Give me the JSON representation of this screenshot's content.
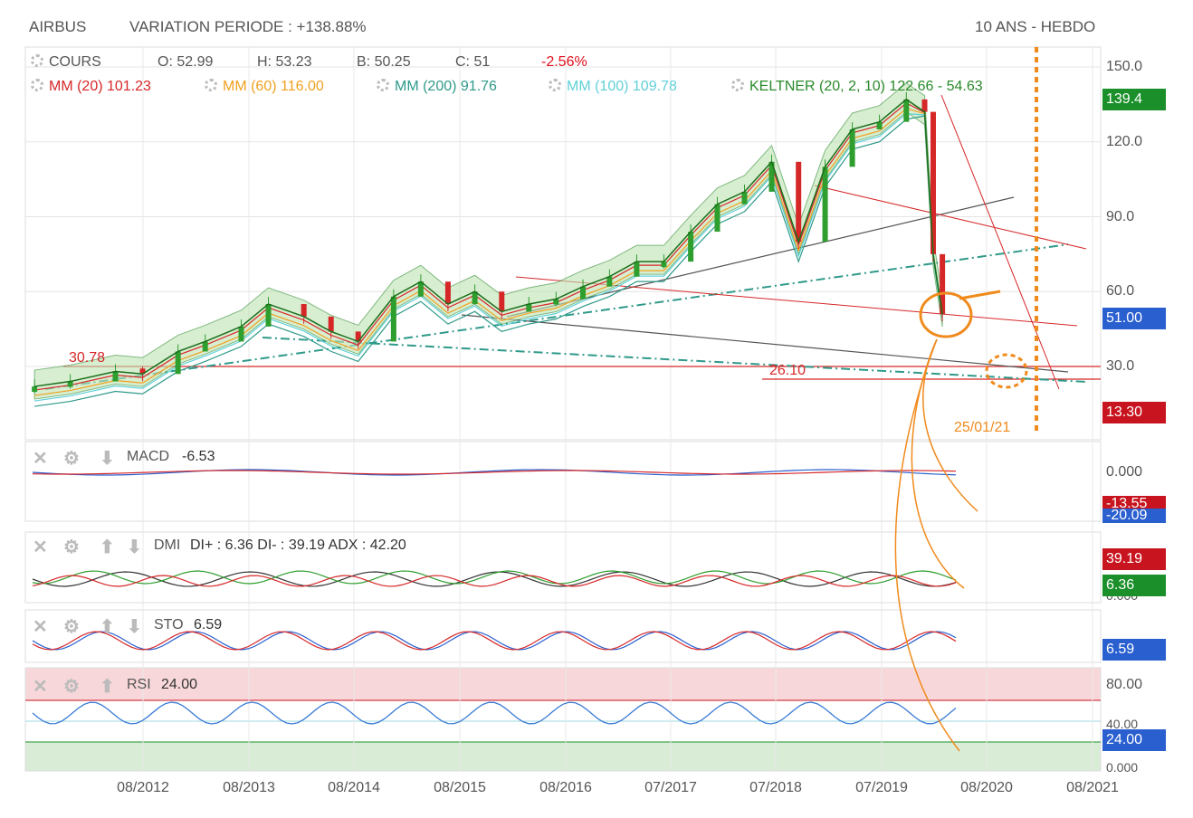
{
  "header": {
    "title": "AIRBUS",
    "variation": "VARIATION PERIODE : +138.88%",
    "period": "10 ANS - HEBDO"
  },
  "legend": {
    "cours": "COURS",
    "open": "O: 52.99",
    "high": "H: 53.23",
    "low": "B: 50.25",
    "close": "C: 51",
    "change": "-2.56%",
    "mm20": "MM (20) 101.23",
    "mm60": "MM (60) 116.00",
    "mm200": "MM (200) 91.76",
    "mm100": "MM (100) 109.78",
    "keltner": "KELTNER (20, 2, 10) 122.66 - 54.63"
  },
  "annotations": {
    "level_high": "30.78",
    "level_low": "26.10",
    "date_marker": "25/01/21"
  },
  "badges": {
    "price_top": "139.4",
    "price_last": "51.00",
    "price_target": "13.30",
    "macd_a": "-13.55",
    "macd_b": "-20.09",
    "dmi_minus": "39.19",
    "dmi_plus": "6.36",
    "sto": "6.59",
    "rsi": "24.00"
  },
  "panels": {
    "macd": {
      "name": "MACD",
      "value": "-6.53",
      "axis": [
        "0.000"
      ]
    },
    "dmi": {
      "name": "DMI",
      "value": "DI+ : 6.36 DI- : 39.19 ADX : 42.20",
      "axis": [
        "0.000"
      ]
    },
    "sto": {
      "name": "STO",
      "value": "6.59"
    },
    "rsi": {
      "name": "RSI",
      "value": "24.00",
      "axis": [
        "80.00",
        "40.00",
        "0.000"
      ]
    }
  },
  "colors": {
    "up": "#2e9e2e",
    "down": "#d62728",
    "mm20": "#d62728",
    "mm60": "#f0a020",
    "mm200": "#2f9a8a",
    "mm100": "#5fd0d8",
    "keltner": "#2a8a2a",
    "projection": "#f08a1c",
    "badge_red": "#c8141e",
    "badge_green": "#1a8f2a",
    "badge_blue": "#2a5fd0"
  },
  "chart_data": {
    "type": "line",
    "title": "AIRBUS",
    "x_ticks": [
      "08/2012",
      "08/2013",
      "08/2014",
      "08/2015",
      "08/2016",
      "07/2017",
      "07/2018",
      "07/2019",
      "08/2020",
      "08/2021"
    ],
    "y_ticks": [
      150.0,
      120.0,
      90.0,
      60.0,
      30.0
    ],
    "ylim": [
      15,
      155
    ],
    "grid": true,
    "series": [
      {
        "name": "COURS",
        "x": [
          "2011-11",
          "2012-03",
          "2012-08",
          "2012-11",
          "2013-03",
          "2013-06",
          "2013-10",
          "2014-01",
          "2014-05",
          "2014-08",
          "2014-11",
          "2015-03",
          "2015-06",
          "2015-09",
          "2015-12",
          "2016-03",
          "2016-06",
          "2016-09",
          "2016-12",
          "2017-03",
          "2017-06",
          "2017-09",
          "2017-12",
          "2018-03",
          "2018-06",
          "2018-09",
          "2018-12",
          "2019-03",
          "2019-06",
          "2019-09",
          "2019-12",
          "2020-02",
          "2020-03",
          "2020-04"
        ],
        "values": [
          22,
          24,
          28,
          27,
          36,
          40,
          46,
          55,
          50,
          44,
          40,
          58,
          64,
          55,
          60,
          52,
          55,
          57,
          62,
          66,
          72,
          72,
          84,
          95,
          100,
          112,
          80,
          110,
          125,
          128,
          137,
          132,
          75,
          51
        ]
      }
    ]
  }
}
